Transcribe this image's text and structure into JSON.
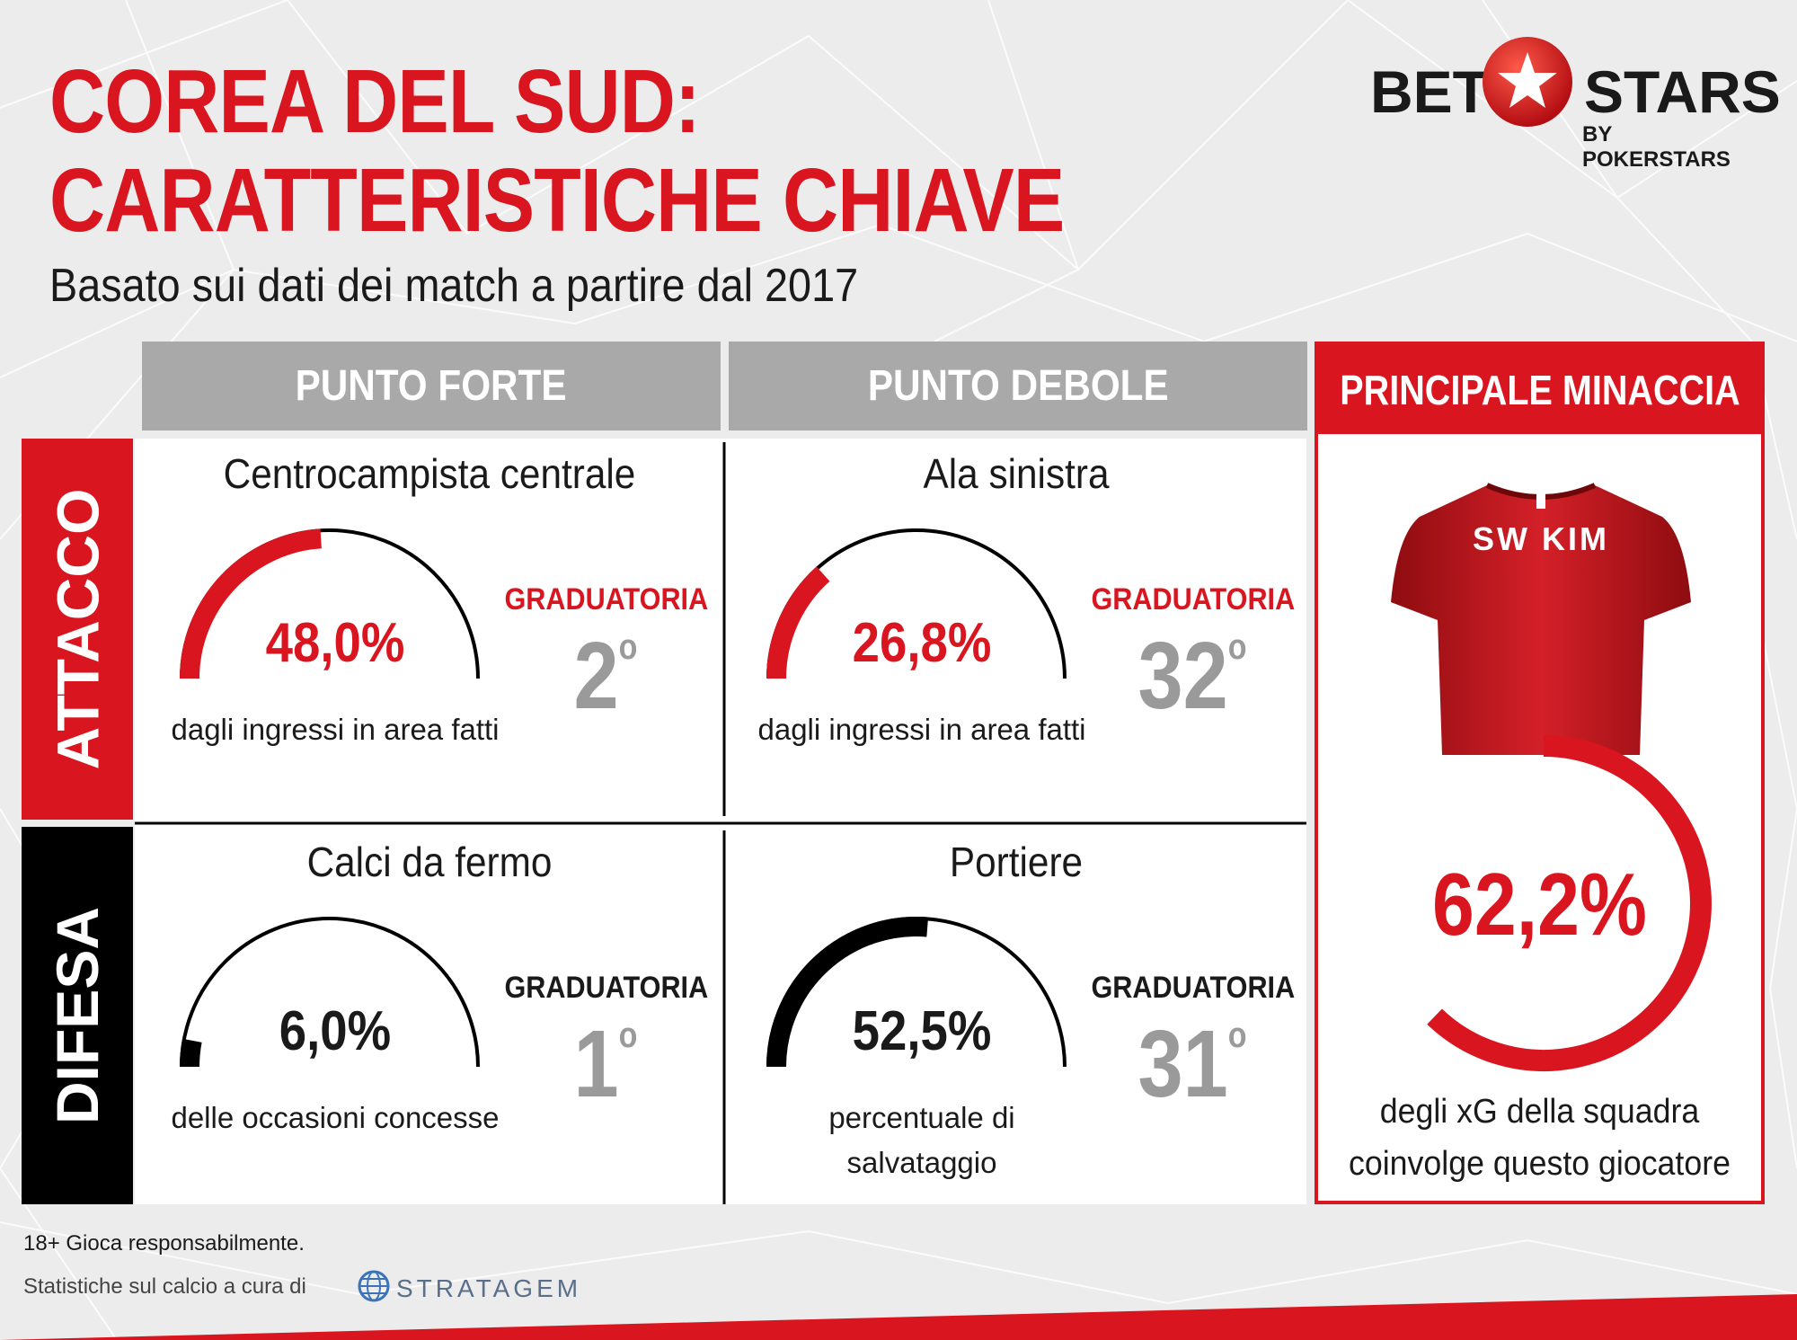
{
  "title_line1": "COREA DEL SUD:",
  "title_line2": "CARATTERISTICHE CHIAVE",
  "subtitle": "Basato sui dati dei match a partire dal 2017",
  "logo": {
    "bet": "BET",
    "stars": "STARS",
    "by": "BY POKERSTARS",
    "icon": "star-ball-icon"
  },
  "headers": {
    "strength": "PUNTO FORTE",
    "weakness": "PUNTO DEBOLE",
    "threat": "PRINCIPALE MINACCIA"
  },
  "rows": {
    "attack": "ATTACCO",
    "defense": "DIFESA"
  },
  "cells": {
    "attack_strength": {
      "title": "Centrocampista centrale",
      "percent_text": "48,0%",
      "value": 48.0,
      "desc": "dagli ingressi in area fatti",
      "rank_label": "GRADUATORIA",
      "rank": "2",
      "rank_suffix": "o"
    },
    "attack_weakness": {
      "title": "Ala sinistra",
      "percent_text": "26,8%",
      "value": 26.8,
      "desc": "dagli ingressi in area fatti",
      "rank_label": "GRADUATORIA",
      "rank": "32",
      "rank_suffix": "o"
    },
    "defense_strength": {
      "title": "Calci da fermo",
      "percent_text": "6,0%",
      "value": 6.0,
      "desc": "delle occasioni concesse",
      "rank_label": "GRADUATORIA",
      "rank": "1",
      "rank_suffix": "o"
    },
    "defense_weakness": {
      "title": "Portiere",
      "percent_text": "52,5%",
      "value": 52.5,
      "desc_line1": "percentuale di",
      "desc_line2": "salvataggio",
      "rank_label": "GRADUATORIA",
      "rank": "31",
      "rank_suffix": "o"
    }
  },
  "threat": {
    "player_name": "SW KIM",
    "percent_text": "62,2%",
    "value": 62.2,
    "desc_line1": "degli xG della squadra",
    "desc_line2": "coinvolge questo giocatore",
    "icon": "jersey-icon"
  },
  "footer": {
    "responsible": "18+ Gioca responsabilmente.",
    "credit": "Statistiche sul calcio a cura di",
    "stratagem": "STRATAGEM",
    "stratagem_icon": "globe-icon"
  },
  "colors": {
    "red": "#d9161f",
    "black": "#000000",
    "gray": "#a9a9a9"
  }
}
